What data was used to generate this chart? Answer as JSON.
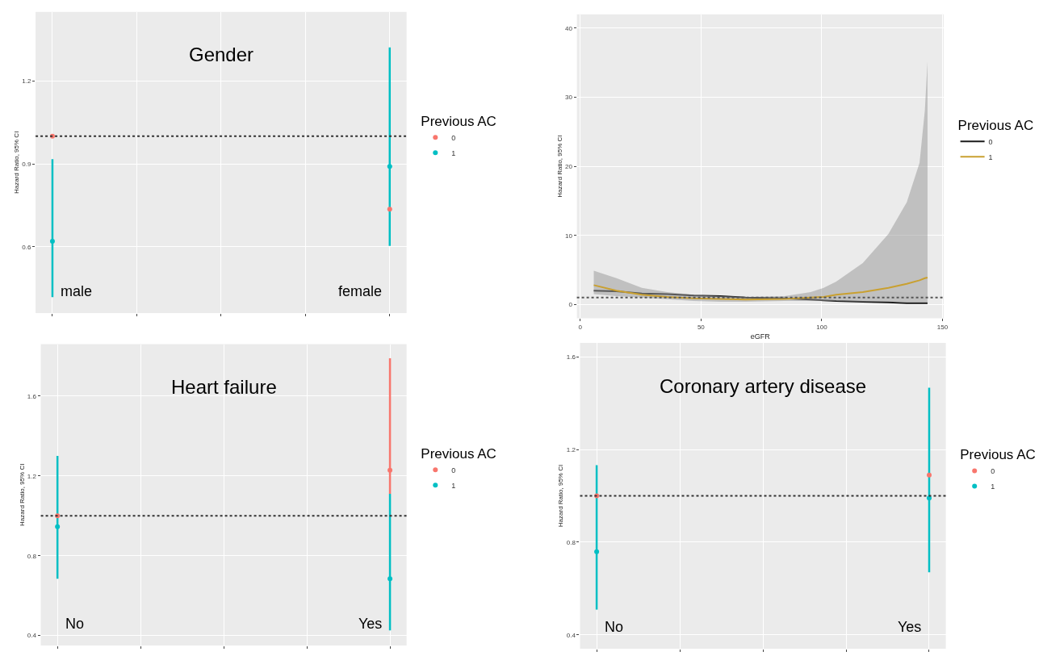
{
  "chart_data": [
    {
      "type": "scatter",
      "title": "Gender",
      "ylabel": "Hazard Ratio, 95% CI",
      "legend_title": "Previous AC",
      "legend": "right",
      "marker": "circle",
      "grid": true,
      "tick_labels": "y",
      "categories": [
        null,
        null,
        null,
        null,
        null
      ],
      "series": [
        {
          "name": "0",
          "color": "#f8766d",
          "values": [
            1.0,
            null,
            null,
            null,
            0.736
          ]
        },
        {
          "name": "1",
          "color": "#00bfc4",
          "values": [
            0.62,
            null,
            null,
            null,
            0.891
          ],
          "errors": [
            [
              0.418,
              0.917
            ],
            null,
            null,
            null,
            [
              0.603,
              1.321
            ]
          ]
        }
      ],
      "ylim": [
        0.36,
        1.45
      ],
      "yticks": [
        0.6,
        0.9,
        1.2
      ],
      "ref_lines": [
        {
          "axis": "y",
          "value": 1.0,
          "line_style": "dotted",
          "color": "#333333"
        }
      ],
      "annotations": [
        "male",
        "female"
      ]
    },
    {
      "type": "line",
      "xlabel": "eGFR",
      "ylabel": "Hazard Ratio, 95% CI",
      "legend_title": "Previous AC",
      "legend": "right",
      "grid": true,
      "series": [
        {
          "name": "0",
          "color": "#1a1a1a",
          "x": [
            5.6,
            15,
            25.5,
            36,
            47,
            58,
            68.5,
            84.6,
            95.4,
            100.8,
            106,
            117,
            127.6,
            135.2,
            140.5,
            142.7,
            143.8
          ],
          "values": [
            2.0,
            1.9,
            1.6,
            1.5,
            1.3,
            1.2,
            1.0,
            0.9,
            0.7,
            0.6,
            0.5,
            0.4,
            0.3,
            0.2,
            0.2,
            0.2,
            0.2
          ]
        },
        {
          "name": "1",
          "color": "#c9a030",
          "x": [
            5.6,
            15,
            25.5,
            36,
            47,
            58,
            68.5,
            84.6,
            95.4,
            100.8,
            106,
            117,
            127.6,
            135.2,
            140.5,
            142.7,
            143.8
          ],
          "values": [
            2.8,
            2.0,
            1.4,
            1.1,
            0.9,
            0.8,
            0.7,
            0.8,
            1.0,
            1.1,
            1.4,
            1.8,
            2.4,
            3.0,
            3.5,
            3.8,
            3.9
          ],
          "lower": [
            1.5,
            1.2,
            1.0,
            0.8,
            0.5,
            0.4,
            0.4,
            0.5,
            0.5,
            0.5,
            0.5,
            0.4,
            0.4,
            0.3,
            0.3,
            0.3,
            0.3
          ],
          "upper": [
            4.9,
            3.8,
            2.4,
            1.8,
            1.4,
            1.2,
            1.1,
            1.2,
            1.8,
            2.4,
            3.3,
            6.0,
            10.2,
            14.8,
            20.5,
            28.1,
            35.2
          ]
        }
      ],
      "xlim": [
        -1.4,
        150.5
      ],
      "xticks": [
        0,
        50,
        100,
        150
      ],
      "ylim": [
        -2,
        42
      ],
      "yticks": [
        0,
        10,
        20,
        30,
        40
      ],
      "ref_lines": [
        {
          "axis": "y",
          "value": 1.0,
          "line_style": "dotted",
          "color": "#555555"
        }
      ]
    },
    {
      "type": "scatter",
      "title": "Heart failure",
      "ylabel": "Hazard Ratio, 95% CI",
      "legend_title": "Previous AC",
      "legend": "right",
      "marker": "circle",
      "grid": true,
      "tick_labels": "y",
      "categories": [
        null,
        null,
        null,
        null,
        null
      ],
      "series": [
        {
          "name": "0",
          "color": "#f8766d",
          "values": [
            1.0,
            null,
            null,
            null,
            1.228
          ],
          "errors": [
            null,
            null,
            null,
            null,
            [
              1.11,
              1.79
            ]
          ]
        },
        {
          "name": "1",
          "color": "#00bfc4",
          "values": [
            0.945,
            null,
            null,
            null,
            0.685
          ],
          "errors": [
            [
              0.685,
              1.3
            ],
            null,
            null,
            null,
            [
              0.426,
              1.11
            ]
          ]
        }
      ],
      "ylim": [
        0.35,
        1.86
      ],
      "yticks": [
        0.4,
        0.8,
        1.2,
        1.6
      ],
      "ref_lines": [
        {
          "axis": "y",
          "value": 1.0,
          "line_style": "dotted",
          "color": "#333333"
        }
      ],
      "annotations": [
        "No",
        "Yes"
      ]
    },
    {
      "type": "scatter",
      "title": "Coronary artery disease",
      "ylabel": "Hazard Ratio, 95% CI",
      "legend_title": "Previous AC",
      "legend": "right",
      "marker": "circle",
      "grid": true,
      "tick_labels": "y",
      "categories": [
        null,
        null,
        null,
        null,
        null
      ],
      "series": [
        {
          "name": "0",
          "color": "#f8766d",
          "values": [
            1.0,
            null,
            null,
            null,
            1.09
          ]
        },
        {
          "name": "1",
          "color": "#00bfc4",
          "values": [
            0.759,
            null,
            null,
            null,
            0.99
          ],
          "errors": [
            [
              0.509,
              1.132
            ],
            null,
            null,
            null,
            [
              0.67,
              1.467
            ]
          ]
        }
      ],
      "ylim": [
        0.34,
        1.66
      ],
      "yticks": [
        0.4,
        0.8,
        1.2,
        1.6
      ],
      "ref_lines": [
        {
          "axis": "y",
          "value": 1.0,
          "line_style": "dotted",
          "color": "#333333"
        }
      ],
      "annotations": [
        "No",
        "Yes"
      ]
    }
  ]
}
